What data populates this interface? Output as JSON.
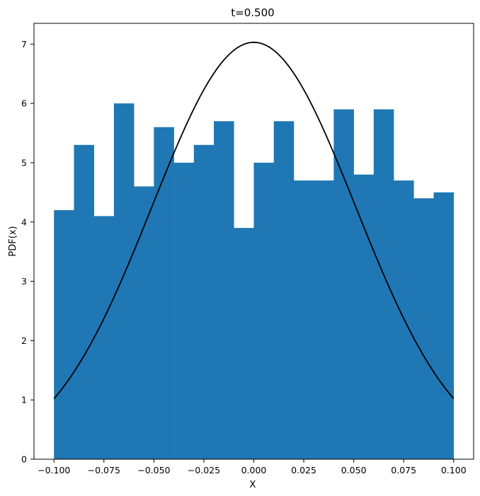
{
  "chart_data": {
    "type": "bar",
    "title": "t=0.500",
    "xlabel": "X",
    "ylabel": "PDF(x)",
    "xlim": [
      -0.11,
      0.11
    ],
    "ylim": [
      0,
      7.35
    ],
    "grid": false,
    "bar_color": "#1f77b4",
    "curve_color": "#000000",
    "x_ticks": [
      -0.1,
      -0.075,
      -0.05,
      -0.025,
      0.0,
      0.025,
      0.05,
      0.075,
      0.1
    ],
    "x_tick_labels": [
      "−0.100",
      "−0.075",
      "−0.050",
      "−0.025",
      "0.000",
      "0.025",
      "0.050",
      "0.075",
      "0.100"
    ],
    "y_ticks": [
      0,
      1,
      2,
      3,
      4,
      5,
      6,
      7
    ],
    "y_tick_labels": [
      "0",
      "1",
      "2",
      "3",
      "4",
      "5",
      "6",
      "7"
    ],
    "histogram": {
      "bin_edges": [
        -0.1,
        -0.09,
        -0.08,
        -0.07,
        -0.06,
        -0.05,
        -0.04,
        -0.03,
        -0.02,
        -0.01,
        0.0,
        0.01,
        0.02,
        0.03,
        0.04,
        0.05,
        0.06,
        0.07,
        0.08,
        0.09,
        0.1
      ],
      "values": [
        4.2,
        5.3,
        4.1,
        6.0,
        4.6,
        5.6,
        5.0,
        5.3,
        5.7,
        3.9,
        5.0,
        5.7,
        4.7,
        4.7,
        5.9,
        4.8,
        5.9,
        4.7,
        4.4,
        4.5
      ]
    },
    "curve": {
      "type": "gaussian",
      "mean": 0.0,
      "peak": 7.03,
      "sigma": 0.0509,
      "x_range": [
        -0.1,
        0.1
      ]
    }
  }
}
